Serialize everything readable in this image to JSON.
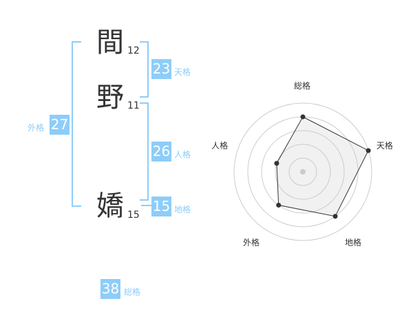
{
  "name": [
    {
      "char": "間",
      "strokes": "12"
    },
    {
      "char": "野",
      "strokes": "11"
    },
    {
      "char": "嬌",
      "strokes": "15"
    }
  ],
  "kaku": {
    "tenkaku": {
      "label": "天格",
      "value": "23"
    },
    "jinkaku": {
      "label": "人格",
      "value": "26"
    },
    "chikaku": {
      "label": "地格",
      "value": "15"
    },
    "gaikaku": {
      "label": "外格",
      "value": "27"
    },
    "soukaku": {
      "label": "総格",
      "value": "38"
    }
  },
  "colors": {
    "accent": "#8dcdfa",
    "text": "#333333"
  },
  "chart_data": {
    "type": "radar",
    "axes": [
      "総格",
      "天格",
      "地格",
      "外格",
      "人格"
    ],
    "values": [
      4,
      5,
      4,
      3,
      2
    ],
    "range": [
      0,
      5
    ],
    "rings": 5
  }
}
